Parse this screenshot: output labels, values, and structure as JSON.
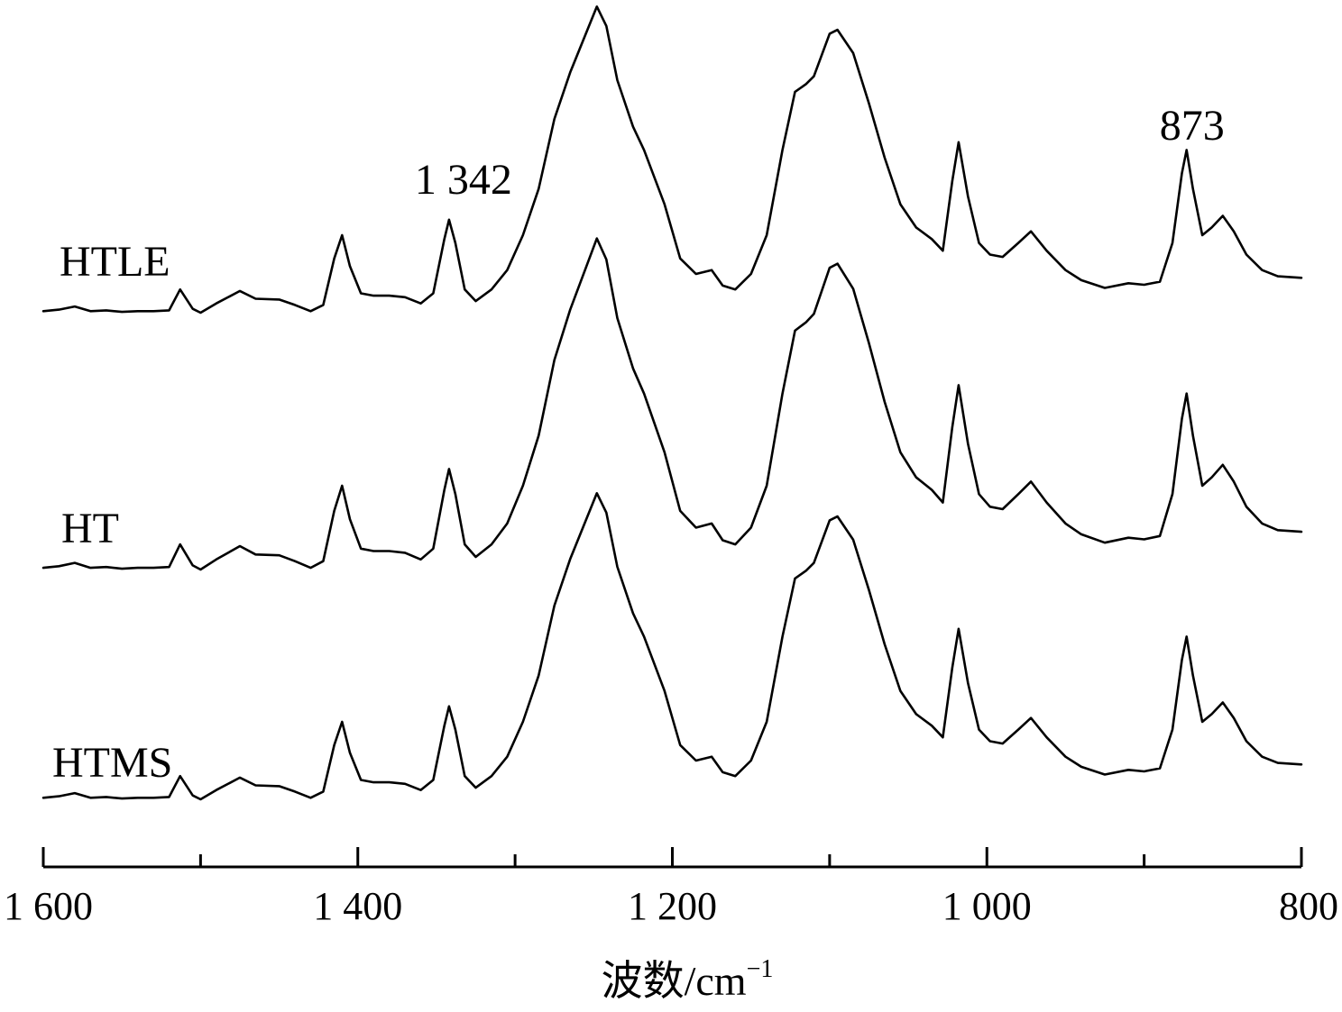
{
  "chart_data": {
    "type": "line",
    "title": "",
    "xlabel_main": "波数/cm",
    "xlabel_sup": "−1",
    "ylabel": "",
    "xlim": [
      1600,
      800
    ],
    "x_reversed": true,
    "x_ticks": [
      1600,
      1500,
      1400,
      1300,
      1200,
      1100,
      1000,
      900,
      800
    ],
    "x_tick_labels": [
      {
        "value": 1600,
        "label": "1 600"
      },
      {
        "value": 1400,
        "label": "1 400"
      },
      {
        "value": 1200,
        "label": "1 200"
      },
      {
        "value": 1000,
        "label": "1 000"
      },
      {
        "value": 800,
        "label": "800"
      }
    ],
    "y_axis_shown": false,
    "grid": false,
    "stacked_offset": true,
    "annotations": [
      {
        "text": "1 342",
        "x": 1342
      },
      {
        "text": "873",
        "x": 873
      }
    ],
    "series": [
      {
        "name": "HTLE",
        "points": [
          [
            1600,
            0.02
          ],
          [
            1590,
            0.04
          ],
          [
            1580,
            0.08
          ],
          [
            1570,
            0.02
          ],
          [
            1560,
            0.03
          ],
          [
            1550,
            0.01
          ],
          [
            1540,
            0.02
          ],
          [
            1530,
            0.02
          ],
          [
            1520,
            0.03
          ],
          [
            1513,
            0.3
          ],
          [
            1505,
            0.05
          ],
          [
            1500,
            0.0
          ],
          [
            1490,
            0.12
          ],
          [
            1475,
            0.28
          ],
          [
            1465,
            0.18
          ],
          [
            1450,
            0.17
          ],
          [
            1440,
            0.1
          ],
          [
            1430,
            0.02
          ],
          [
            1422,
            0.1
          ],
          [
            1415,
            0.7
          ],
          [
            1410,
            1.0
          ],
          [
            1405,
            0.6
          ],
          [
            1398,
            0.25
          ],
          [
            1390,
            0.22
          ],
          [
            1380,
            0.22
          ],
          [
            1370,
            0.2
          ],
          [
            1360,
            0.12
          ],
          [
            1352,
            0.25
          ],
          [
            1345,
            0.95
          ],
          [
            1342,
            1.2
          ],
          [
            1338,
            0.9
          ],
          [
            1332,
            0.3
          ],
          [
            1325,
            0.15
          ],
          [
            1315,
            0.3
          ],
          [
            1305,
            0.55
          ],
          [
            1295,
            1.0
          ],
          [
            1285,
            1.6
          ],
          [
            1275,
            2.5
          ],
          [
            1265,
            3.1
          ],
          [
            1255,
            3.6
          ],
          [
            1248,
            3.95
          ],
          [
            1242,
            3.7
          ],
          [
            1235,
            3.0
          ],
          [
            1225,
            2.4
          ],
          [
            1218,
            2.1
          ],
          [
            1205,
            1.4
          ],
          [
            1195,
            0.7
          ],
          [
            1185,
            0.5
          ],
          [
            1175,
            0.55
          ],
          [
            1168,
            0.35
          ],
          [
            1160,
            0.3
          ],
          [
            1150,
            0.5
          ],
          [
            1140,
            1.0
          ],
          [
            1130,
            2.1
          ],
          [
            1122,
            2.85
          ],
          [
            1115,
            2.95
          ],
          [
            1110,
            3.05
          ],
          [
            1100,
            3.6
          ],
          [
            1095,
            3.65
          ],
          [
            1085,
            3.35
          ],
          [
            1075,
            2.7
          ],
          [
            1065,
            2.0
          ],
          [
            1055,
            1.4
          ],
          [
            1045,
            1.1
          ],
          [
            1035,
            0.95
          ],
          [
            1028,
            0.8
          ],
          [
            1022,
            1.7
          ],
          [
            1018,
            2.2
          ],
          [
            1012,
            1.5
          ],
          [
            1005,
            0.9
          ],
          [
            998,
            0.75
          ],
          [
            990,
            0.72
          ],
          [
            980,
            0.9
          ],
          [
            972,
            1.05
          ],
          [
            962,
            0.8
          ],
          [
            950,
            0.55
          ],
          [
            940,
            0.42
          ],
          [
            925,
            0.32
          ],
          [
            910,
            0.38
          ],
          [
            900,
            0.36
          ],
          [
            890,
            0.4
          ],
          [
            882,
            0.9
          ],
          [
            876,
            1.8
          ],
          [
            873,
            2.1
          ],
          [
            869,
            1.6
          ],
          [
            863,
            1.0
          ],
          [
            857,
            1.1
          ],
          [
            850,
            1.25
          ],
          [
            843,
            1.05
          ],
          [
            835,
            0.75
          ],
          [
            825,
            0.55
          ],
          [
            815,
            0.47
          ],
          [
            800,
            0.45
          ]
        ]
      },
      {
        "name": "HT",
        "points": [
          [
            1600,
            0.02
          ],
          [
            1590,
            0.04
          ],
          [
            1580,
            0.08
          ],
          [
            1570,
            0.02
          ],
          [
            1560,
            0.03
          ],
          [
            1550,
            0.01
          ],
          [
            1540,
            0.02
          ],
          [
            1530,
            0.02
          ],
          [
            1520,
            0.03
          ],
          [
            1513,
            0.3
          ],
          [
            1505,
            0.05
          ],
          [
            1500,
            0.0
          ],
          [
            1490,
            0.12
          ],
          [
            1475,
            0.28
          ],
          [
            1465,
            0.18
          ],
          [
            1450,
            0.17
          ],
          [
            1440,
            0.1
          ],
          [
            1430,
            0.02
          ],
          [
            1422,
            0.1
          ],
          [
            1415,
            0.7
          ],
          [
            1410,
            1.0
          ],
          [
            1405,
            0.6
          ],
          [
            1398,
            0.25
          ],
          [
            1390,
            0.22
          ],
          [
            1380,
            0.22
          ],
          [
            1370,
            0.2
          ],
          [
            1360,
            0.12
          ],
          [
            1352,
            0.25
          ],
          [
            1345,
            0.95
          ],
          [
            1342,
            1.2
          ],
          [
            1338,
            0.9
          ],
          [
            1332,
            0.3
          ],
          [
            1325,
            0.15
          ],
          [
            1315,
            0.3
          ],
          [
            1305,
            0.55
          ],
          [
            1295,
            1.0
          ],
          [
            1285,
            1.6
          ],
          [
            1275,
            2.5
          ],
          [
            1265,
            3.1
          ],
          [
            1255,
            3.6
          ],
          [
            1248,
            3.95
          ],
          [
            1242,
            3.7
          ],
          [
            1235,
            3.0
          ],
          [
            1225,
            2.4
          ],
          [
            1218,
            2.1
          ],
          [
            1205,
            1.4
          ],
          [
            1195,
            0.7
          ],
          [
            1185,
            0.5
          ],
          [
            1175,
            0.55
          ],
          [
            1168,
            0.35
          ],
          [
            1160,
            0.3
          ],
          [
            1150,
            0.5
          ],
          [
            1140,
            1.0
          ],
          [
            1130,
            2.1
          ],
          [
            1122,
            2.85
          ],
          [
            1115,
            2.95
          ],
          [
            1110,
            3.05
          ],
          [
            1100,
            3.6
          ],
          [
            1095,
            3.65
          ],
          [
            1085,
            3.35
          ],
          [
            1075,
            2.7
          ],
          [
            1065,
            2.0
          ],
          [
            1055,
            1.4
          ],
          [
            1045,
            1.1
          ],
          [
            1035,
            0.95
          ],
          [
            1028,
            0.8
          ],
          [
            1022,
            1.7
          ],
          [
            1018,
            2.2
          ],
          [
            1012,
            1.5
          ],
          [
            1005,
            0.9
          ],
          [
            998,
            0.75
          ],
          [
            990,
            0.72
          ],
          [
            980,
            0.9
          ],
          [
            972,
            1.05
          ],
          [
            962,
            0.8
          ],
          [
            950,
            0.55
          ],
          [
            940,
            0.42
          ],
          [
            925,
            0.32
          ],
          [
            910,
            0.38
          ],
          [
            900,
            0.36
          ],
          [
            890,
            0.4
          ],
          [
            882,
            0.9
          ],
          [
            876,
            1.8
          ],
          [
            873,
            2.1
          ],
          [
            869,
            1.6
          ],
          [
            863,
            1.0
          ],
          [
            857,
            1.1
          ],
          [
            850,
            1.25
          ],
          [
            843,
            1.05
          ],
          [
            835,
            0.75
          ],
          [
            825,
            0.55
          ],
          [
            815,
            0.47
          ],
          [
            800,
            0.45
          ]
        ]
      },
      {
        "name": "HTMS",
        "points": [
          [
            1600,
            0.02
          ],
          [
            1590,
            0.04
          ],
          [
            1580,
            0.08
          ],
          [
            1570,
            0.02
          ],
          [
            1560,
            0.03
          ],
          [
            1550,
            0.01
          ],
          [
            1540,
            0.02
          ],
          [
            1530,
            0.02
          ],
          [
            1520,
            0.03
          ],
          [
            1513,
            0.3
          ],
          [
            1505,
            0.05
          ],
          [
            1500,
            0.0
          ],
          [
            1490,
            0.12
          ],
          [
            1475,
            0.28
          ],
          [
            1465,
            0.18
          ],
          [
            1450,
            0.17
          ],
          [
            1440,
            0.1
          ],
          [
            1430,
            0.02
          ],
          [
            1422,
            0.1
          ],
          [
            1415,
            0.7
          ],
          [
            1410,
            1.0
          ],
          [
            1405,
            0.6
          ],
          [
            1398,
            0.25
          ],
          [
            1390,
            0.22
          ],
          [
            1380,
            0.22
          ],
          [
            1370,
            0.2
          ],
          [
            1360,
            0.12
          ],
          [
            1352,
            0.25
          ],
          [
            1345,
            0.95
          ],
          [
            1342,
            1.2
          ],
          [
            1338,
            0.9
          ],
          [
            1332,
            0.3
          ],
          [
            1325,
            0.15
          ],
          [
            1315,
            0.3
          ],
          [
            1305,
            0.55
          ],
          [
            1295,
            1.0
          ],
          [
            1285,
            1.6
          ],
          [
            1275,
            2.5
          ],
          [
            1265,
            3.1
          ],
          [
            1255,
            3.6
          ],
          [
            1248,
            3.95
          ],
          [
            1242,
            3.7
          ],
          [
            1235,
            3.0
          ],
          [
            1225,
            2.4
          ],
          [
            1218,
            2.1
          ],
          [
            1205,
            1.4
          ],
          [
            1195,
            0.7
          ],
          [
            1185,
            0.5
          ],
          [
            1175,
            0.55
          ],
          [
            1168,
            0.35
          ],
          [
            1160,
            0.3
          ],
          [
            1150,
            0.5
          ],
          [
            1140,
            1.0
          ],
          [
            1130,
            2.1
          ],
          [
            1122,
            2.85
          ],
          [
            1115,
            2.95
          ],
          [
            1110,
            3.05
          ],
          [
            1100,
            3.6
          ],
          [
            1095,
            3.65
          ],
          [
            1085,
            3.35
          ],
          [
            1075,
            2.7
          ],
          [
            1065,
            2.0
          ],
          [
            1055,
            1.4
          ],
          [
            1045,
            1.1
          ],
          [
            1035,
            0.95
          ],
          [
            1028,
            0.8
          ],
          [
            1022,
            1.7
          ],
          [
            1018,
            2.2
          ],
          [
            1012,
            1.5
          ],
          [
            1005,
            0.9
          ],
          [
            998,
            0.75
          ],
          [
            990,
            0.72
          ],
          [
            980,
            0.9
          ],
          [
            972,
            1.05
          ],
          [
            962,
            0.8
          ],
          [
            950,
            0.55
          ],
          [
            940,
            0.42
          ],
          [
            925,
            0.32
          ],
          [
            910,
            0.38
          ],
          [
            900,
            0.36
          ],
          [
            890,
            0.4
          ],
          [
            882,
            0.9
          ],
          [
            876,
            1.8
          ],
          [
            873,
            2.1
          ],
          [
            869,
            1.6
          ],
          [
            863,
            1.0
          ],
          [
            857,
            1.1
          ],
          [
            850,
            1.25
          ],
          [
            843,
            1.05
          ],
          [
            835,
            0.75
          ],
          [
            825,
            0.55
          ],
          [
            815,
            0.47
          ],
          [
            800,
            0.45
          ]
        ]
      }
    ]
  }
}
